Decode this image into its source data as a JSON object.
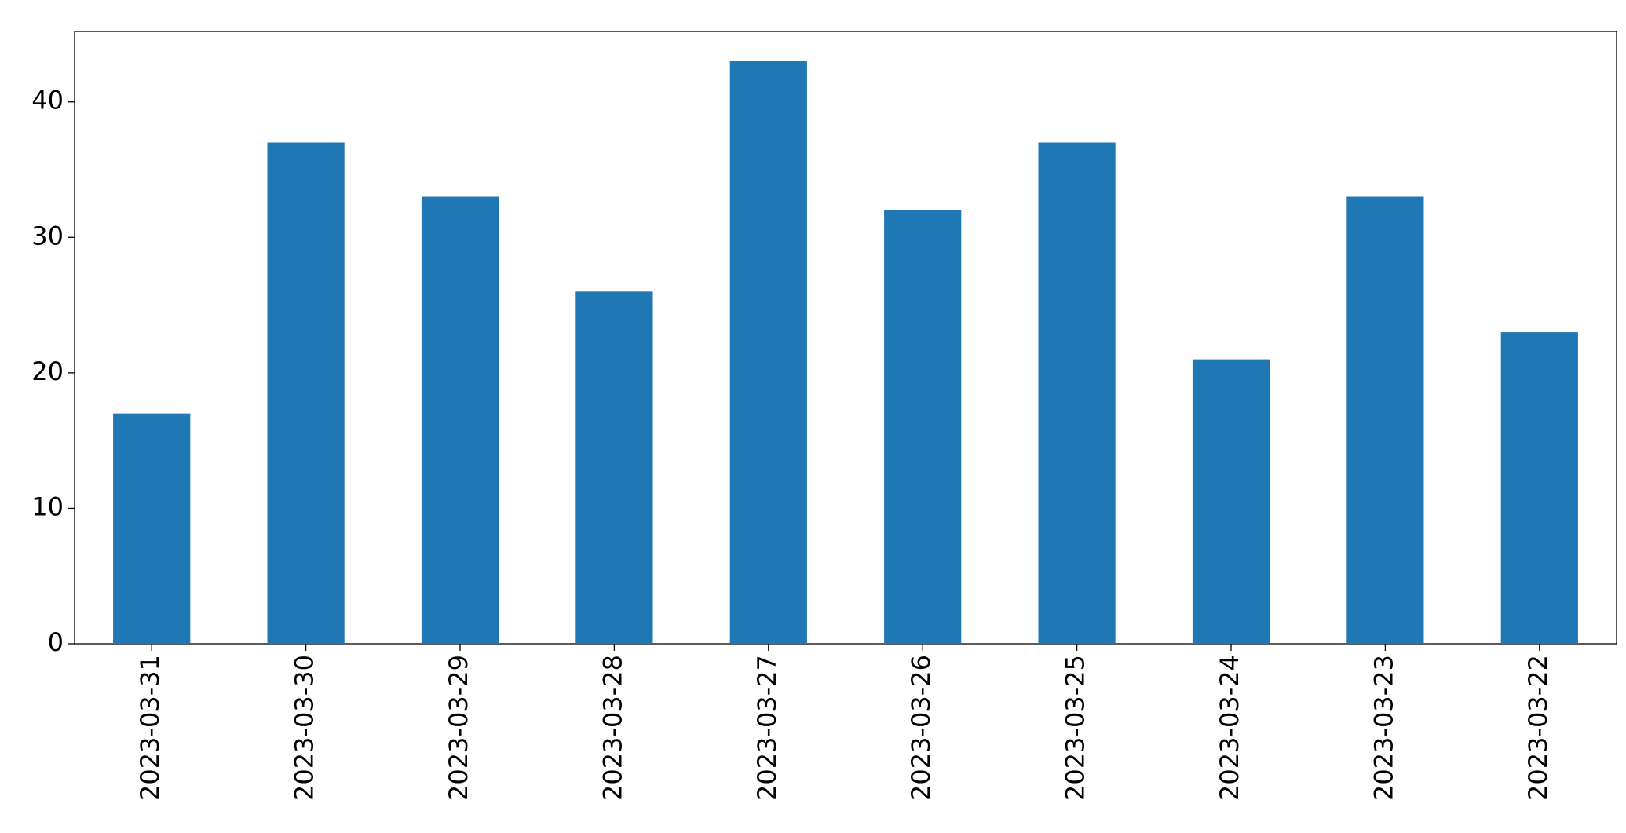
{
  "chart_data": {
    "type": "bar",
    "categories": [
      "2023-03-31",
      "2023-03-30",
      "2023-03-29",
      "2023-03-28",
      "2023-03-27",
      "2023-03-26",
      "2023-03-25",
      "2023-03-24",
      "2023-03-23",
      "2023-03-22"
    ],
    "values": [
      17,
      37,
      33,
      26,
      43,
      32,
      37,
      21,
      33,
      23
    ],
    "color": "#1f77b4",
    "ylim": [
      0,
      45.2
    ],
    "yticks": [
      0,
      10,
      20,
      30,
      40
    ],
    "grid": false
  }
}
